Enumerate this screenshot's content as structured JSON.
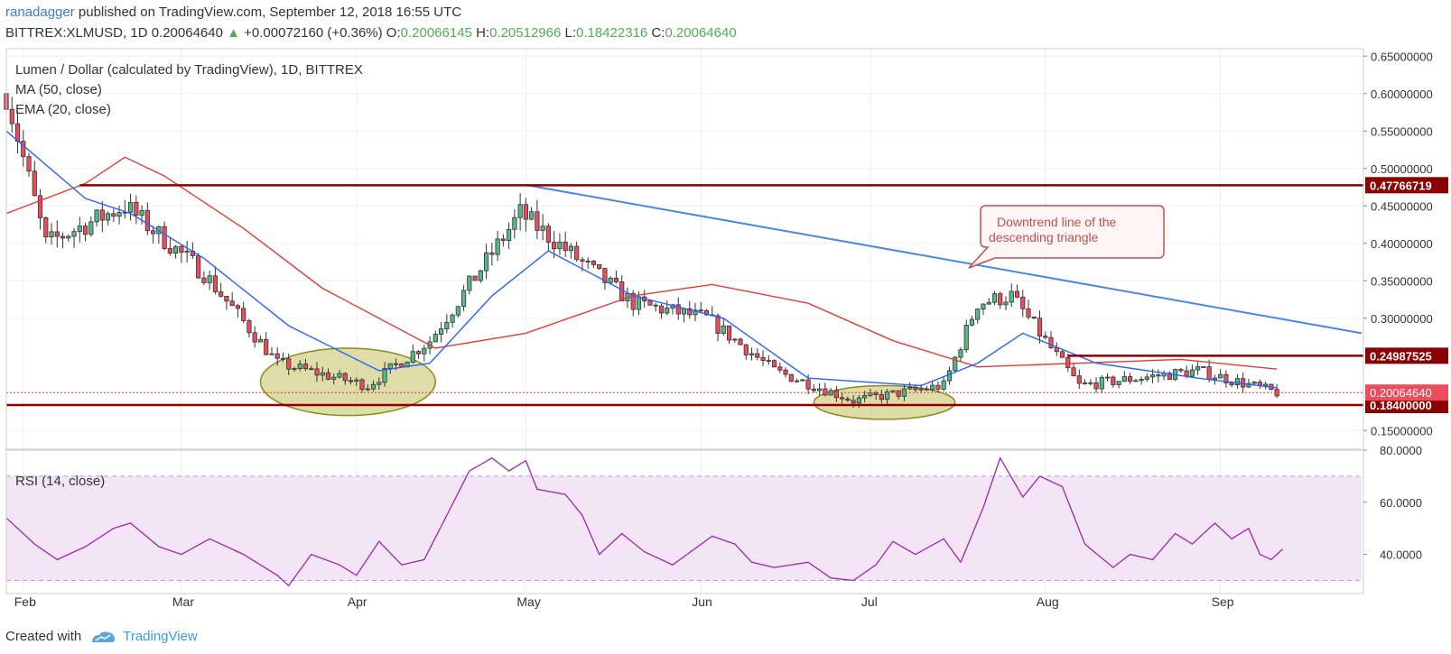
{
  "header": {
    "author": "ranadagger",
    "published_text": "published on TradingView.com, September 12, 2018 16:55 UTC",
    "symbol": "BITTREX:XLMUSD, 1D",
    "last_price": "0.20064640",
    "change_arrow": "▲",
    "change": "+0.00072160 (+0.36%)",
    "o_label": "O:",
    "o_value": "0.20066145",
    "h_label": "H:",
    "h_value": "0.20512966",
    "l_label": "L:",
    "l_value": "0.18422316",
    "c_label": "C:",
    "c_value": "0.20064640"
  },
  "legend": {
    "title": "Lumen / Dollar (calculated by TradingView), 1D, BITTREX",
    "ma": "MA (50, close)",
    "ema": "EMA (20, close)",
    "rsi": "RSI (14, close)"
  },
  "annotation": {
    "line1": "Downtrend line of the",
    "line2": "descending triangle"
  },
  "footer": {
    "created_with": "Created with",
    "brand": "TradingView"
  },
  "colors": {
    "up": "#53b987",
    "down": "#eb4d5c",
    "candle_outline": "#333333",
    "ma": "#e53935",
    "ema": "#2962ff",
    "rsi": "#9c27b0",
    "rsi_band": "#f3e5f5",
    "level_line": "#8b0000",
    "trend_line": "#4a86e8",
    "ellipse": "#b5b23c",
    "price_tag_green": "#4caf50"
  },
  "chart_data": [
    {
      "type": "candlestick",
      "title": "Lumen / Dollar (calculated by TradingView), 1D, BITTREX",
      "x_tick_labels": [
        "Feb",
        "Mar",
        "Apr",
        "May",
        "Jun",
        "Jul",
        "Aug",
        "Sep"
      ],
      "y_tick_labels": [
        "0.65000000",
        "0.60000000",
        "0.55000000",
        "0.50000000",
        "0.45000000",
        "0.40000000",
        "0.35000000",
        "0.30000000",
        "0.15000000"
      ],
      "ylim": [
        0.125,
        0.66
      ],
      "x_range": [
        "2018-01-29",
        "2018-09-26"
      ],
      "ohlc_keypoints": [
        {
          "date": "2018-01-29",
          "close": 0.6
        },
        {
          "date": "2018-02-05",
          "close": 0.4
        },
        {
          "date": "2018-02-19",
          "close": 0.45
        },
        {
          "date": "2018-03-05",
          "close": 0.36
        },
        {
          "date": "2018-03-18",
          "close": 0.24
        },
        {
          "date": "2018-04-03",
          "close": 0.21
        },
        {
          "date": "2018-04-14",
          "close": 0.27
        },
        {
          "date": "2018-04-30",
          "close": 0.44
        },
        {
          "date": "2018-05-10",
          "close": 0.38
        },
        {
          "date": "2018-05-20",
          "close": 0.32
        },
        {
          "date": "2018-06-02",
          "close": 0.3
        },
        {
          "date": "2018-06-14",
          "close": 0.23
        },
        {
          "date": "2018-06-28",
          "close": 0.19
        },
        {
          "date": "2018-07-14",
          "close": 0.21
        },
        {
          "date": "2018-07-20",
          "close": 0.32
        },
        {
          "date": "2018-07-26",
          "close": 0.33
        },
        {
          "date": "2018-08-07",
          "close": 0.21
        },
        {
          "date": "2018-08-28",
          "close": 0.23
        },
        {
          "date": "2018-09-11",
          "close": 0.2006
        }
      ],
      "horizontal_levels": [
        {
          "value": 0.47766719,
          "label": "0.47766719"
        },
        {
          "value": 0.24987525,
          "label": "0.24987525"
        },
        {
          "value": 0.184,
          "label": "0.18400000"
        }
      ],
      "last_price_label": "0.20064640",
      "last_price": 0.2006464,
      "trend_line": [
        {
          "date": "2018-05-01",
          "value": 0.478
        },
        {
          "date": "2018-09-26",
          "value": 0.28
        }
      ],
      "highlight_zones": [
        {
          "from": "2018-03-15",
          "to": "2018-04-15",
          "low": 0.17,
          "high": 0.26
        },
        {
          "from": "2018-06-21",
          "to": "2018-07-16",
          "low": 0.165,
          "high": 0.21
        }
      ],
      "series": [
        {
          "name": "MA (50, close)",
          "color": "#e53935",
          "points": [
            [
              "2018-01-29",
              0.44
            ],
            [
              "2018-02-12",
              0.48
            ],
            [
              "2018-02-19",
              0.515
            ],
            [
              "2018-02-26",
              0.49
            ],
            [
              "2018-03-12",
              0.42
            ],
            [
              "2018-03-26",
              0.34
            ],
            [
              "2018-04-15",
              0.26
            ],
            [
              "2018-05-01",
              0.28
            ],
            [
              "2018-05-20",
              0.33
            ],
            [
              "2018-06-03",
              0.345
            ],
            [
              "2018-06-20",
              0.32
            ],
            [
              "2018-07-05",
              0.27
            ],
            [
              "2018-07-20",
              0.235
            ],
            [
              "2018-08-07",
              0.24
            ],
            [
              "2018-08-25",
              0.245
            ],
            [
              "2018-09-11",
              0.232
            ]
          ]
        },
        {
          "name": "EMA (20, close)",
          "color": "#2962ff",
          "points": [
            [
              "2018-01-29",
              0.55
            ],
            [
              "2018-02-12",
              0.46
            ],
            [
              "2018-02-20",
              0.44
            ],
            [
              "2018-03-05",
              0.38
            ],
            [
              "2018-03-20",
              0.29
            ],
            [
              "2018-04-05",
              0.23
            ],
            [
              "2018-04-14",
              0.24
            ],
            [
              "2018-04-25",
              0.33
            ],
            [
              "2018-05-05",
              0.39
            ],
            [
              "2018-05-20",
              0.33
            ],
            [
              "2018-06-05",
              0.3
            ],
            [
              "2018-06-20",
              0.22
            ],
            [
              "2018-07-10",
              0.21
            ],
            [
              "2018-07-20",
              0.24
            ],
            [
              "2018-07-28",
              0.28
            ],
            [
              "2018-08-10",
              0.24
            ],
            [
              "2018-08-28",
              0.22
            ],
            [
              "2018-09-11",
              0.207
            ]
          ]
        }
      ]
    },
    {
      "type": "line",
      "title": "RSI (14, close)",
      "ylim": [
        25,
        80
      ],
      "y_tick_labels": [
        "80.0000",
        "60.0000",
        "40.0000"
      ],
      "bands": [
        30,
        70
      ],
      "series": [
        {
          "name": "RSI (14, close)",
          "color": "#9c27b0",
          "points": [
            [
              "2018-01-29",
              54
            ],
            [
              "2018-02-03",
              44
            ],
            [
              "2018-02-07",
              38
            ],
            [
              "2018-02-12",
              43
            ],
            [
              "2018-02-17",
              50
            ],
            [
              "2018-02-20",
              52
            ],
            [
              "2018-02-25",
              43
            ],
            [
              "2018-03-01",
              40
            ],
            [
              "2018-03-06",
              46
            ],
            [
              "2018-03-12",
              40
            ],
            [
              "2018-03-18",
              32
            ],
            [
              "2018-03-20",
              28
            ],
            [
              "2018-03-24",
              40
            ],
            [
              "2018-03-29",
              36
            ],
            [
              "2018-04-01",
              32
            ],
            [
              "2018-04-05",
              45
            ],
            [
              "2018-04-09",
              36
            ],
            [
              "2018-04-13",
              38
            ],
            [
              "2018-04-17",
              55
            ],
            [
              "2018-04-21",
              72
            ],
            [
              "2018-04-25",
              77
            ],
            [
              "2018-04-28",
              72
            ],
            [
              "2018-05-01",
              76
            ],
            [
              "2018-05-03",
              65
            ],
            [
              "2018-05-08",
              63
            ],
            [
              "2018-05-11",
              55
            ],
            [
              "2018-05-14",
              40
            ],
            [
              "2018-05-18",
              48
            ],
            [
              "2018-05-22",
              41
            ],
            [
              "2018-05-27",
              36
            ],
            [
              "2018-06-03",
              47
            ],
            [
              "2018-06-07",
              44
            ],
            [
              "2018-06-10",
              37
            ],
            [
              "2018-06-14",
              35
            ],
            [
              "2018-06-20",
              37
            ],
            [
              "2018-06-24",
              31
            ],
            [
              "2018-06-28",
              30
            ],
            [
              "2018-07-02",
              36
            ],
            [
              "2018-07-05",
              45
            ],
            [
              "2018-07-09",
              40
            ],
            [
              "2018-07-14",
              46
            ],
            [
              "2018-07-17",
              37
            ],
            [
              "2018-07-21",
              58
            ],
            [
              "2018-07-24",
              77
            ],
            [
              "2018-07-28",
              62
            ],
            [
              "2018-07-31",
              70
            ],
            [
              "2018-08-04",
              66
            ],
            [
              "2018-08-08",
              44
            ],
            [
              "2018-08-13",
              35
            ],
            [
              "2018-08-16",
              40
            ],
            [
              "2018-08-20",
              38
            ],
            [
              "2018-08-24",
              48
            ],
            [
              "2018-08-27",
              44
            ],
            [
              "2018-08-31",
              52
            ],
            [
              "2018-09-03",
              46
            ],
            [
              "2018-09-06",
              50
            ],
            [
              "2018-09-08",
              40
            ],
            [
              "2018-09-10",
              38
            ],
            [
              "2018-09-12",
              42
            ]
          ]
        }
      ]
    }
  ]
}
